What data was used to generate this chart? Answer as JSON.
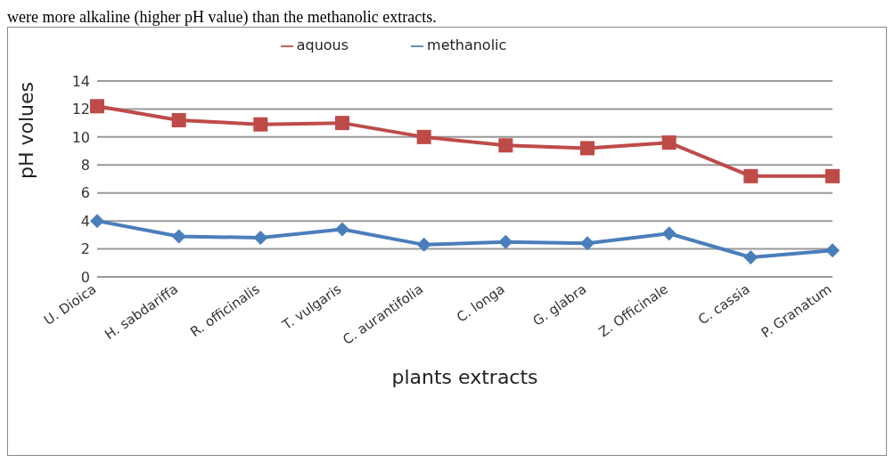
{
  "chart_data": {
    "type": "line",
    "annotations": [
      "were more alkaline (higher pH value) than the methanolic extracts."
    ],
    "ylabel": "pH volues",
    "xlabel": "plants extracts",
    "categories": [
      "U. Dioica",
      "H. sabdariffa",
      "R. officinalis",
      "T. vulgaris",
      "C. aurantifolia",
      "C. longa",
      "G. glabra",
      "Z. Officinale",
      "C. cassia",
      "P. Granatum"
    ],
    "series": [
      {
        "name": "methanolic",
        "color": "#4a7ebb",
        "marker": "diamond",
        "values": [
          4.0,
          2.9,
          2.8,
          3.4,
          2.3,
          2.5,
          2.4,
          3.1,
          1.4,
          1.9
        ]
      },
      {
        "name": "aquous",
        "color": "#be4b48",
        "marker": "square",
        "values": [
          12.2,
          11.2,
          10.9,
          11.0,
          10.0,
          9.4,
          9.2,
          9.6,
          7.2,
          7.2
        ]
      }
    ],
    "ylim": [
      0,
      14
    ],
    "yticks": [
      0,
      2,
      4,
      6,
      8,
      10,
      12,
      14
    ],
    "grid": "y",
    "legend": "top",
    "line_style": "solid"
  }
}
